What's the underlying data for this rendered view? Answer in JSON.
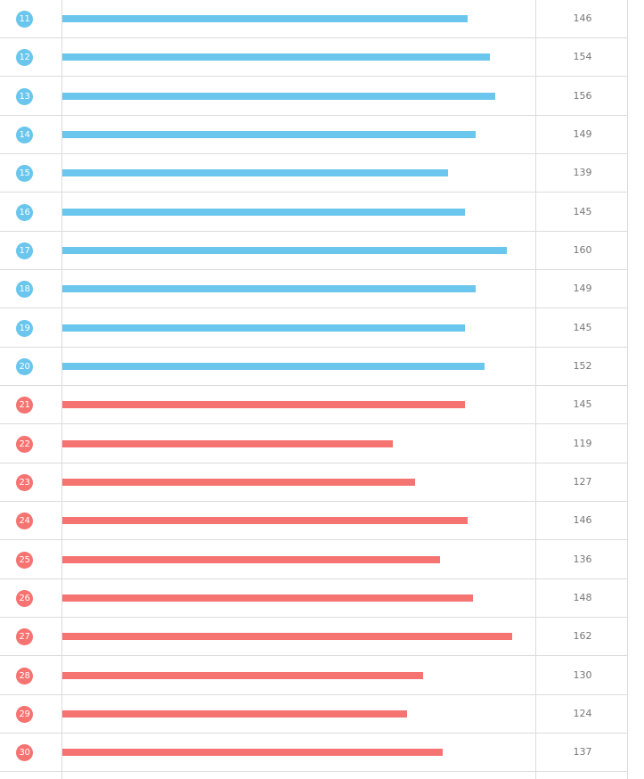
{
  "chart_data": {
    "type": "bar",
    "orientation": "horizontal",
    "categories": [
      "11",
      "12",
      "13",
      "14",
      "15",
      "16",
      "17",
      "18",
      "19",
      "20",
      "21",
      "22",
      "23",
      "24",
      "25",
      "26",
      "27",
      "28",
      "29",
      "30"
    ],
    "values": [
      146,
      154,
      156,
      149,
      139,
      145,
      160,
      149,
      145,
      152,
      145,
      119,
      127,
      146,
      136,
      148,
      162,
      130,
      124,
      137
    ],
    "groups": [
      {
        "rows": [
          "11",
          "12",
          "13",
          "14",
          "15",
          "16",
          "17",
          "18",
          "19",
          "20"
        ],
        "color": "#6ac6ec"
      },
      {
        "rows": [
          "21",
          "22",
          "23",
          "24",
          "25",
          "26",
          "27",
          "28",
          "29",
          "30"
        ],
        "color": "#f57371"
      }
    ],
    "xlim": [
      0,
      170
    ],
    "title": "",
    "xlabel": "",
    "ylabel": "",
    "grid": true
  }
}
